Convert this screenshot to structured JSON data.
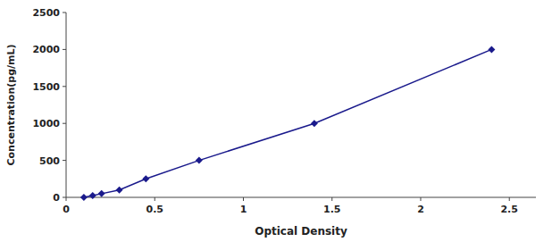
{
  "chart_data": {
    "type": "line",
    "x": [
      0.1,
      0.15,
      0.2,
      0.3,
      0.45,
      0.75,
      1.4,
      2.4
    ],
    "values": [
      0,
      25,
      50,
      100,
      250,
      500,
      1000,
      2000
    ],
    "color": "#1a1a8c",
    "marker": "diamond",
    "xlabel": "Optical Density",
    "ylabel": "Concentration(pg/mL)",
    "xlim": [
      0.0,
      2.65
    ],
    "ylim": [
      0,
      2500
    ],
    "xticks": [
      0,
      0.5,
      1,
      1.5,
      2,
      2.5
    ],
    "yticks": [
      0,
      500,
      1000,
      1500,
      2000,
      2500
    ]
  }
}
